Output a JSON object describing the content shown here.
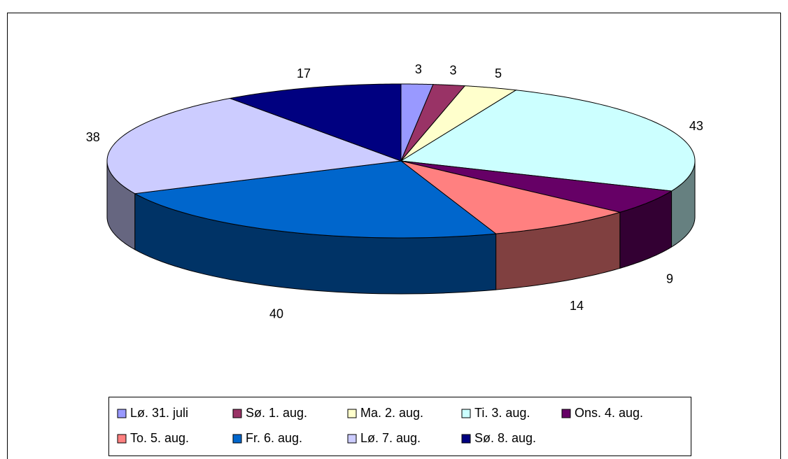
{
  "chart_data": {
    "type": "pie",
    "categories": [
      "Lø. 31. juli",
      "Sø. 1. aug.",
      "Ma. 2. aug.",
      "Ti. 3. aug.",
      "Ons. 4. aug.",
      "To. 5. aug.",
      "Fr. 6. aug.",
      "Lø. 7. aug.",
      "Sø. 8. aug."
    ],
    "values": [
      3,
      3,
      5,
      43,
      9,
      14,
      40,
      38,
      17
    ],
    "colors": [
      "#9999ff",
      "#993366",
      "#ffffcc",
      "#ccffff",
      "#660066",
      "#ff8080",
      "#0066cc",
      "#ccccff",
      "#000080"
    ],
    "legend": "bottom"
  }
}
